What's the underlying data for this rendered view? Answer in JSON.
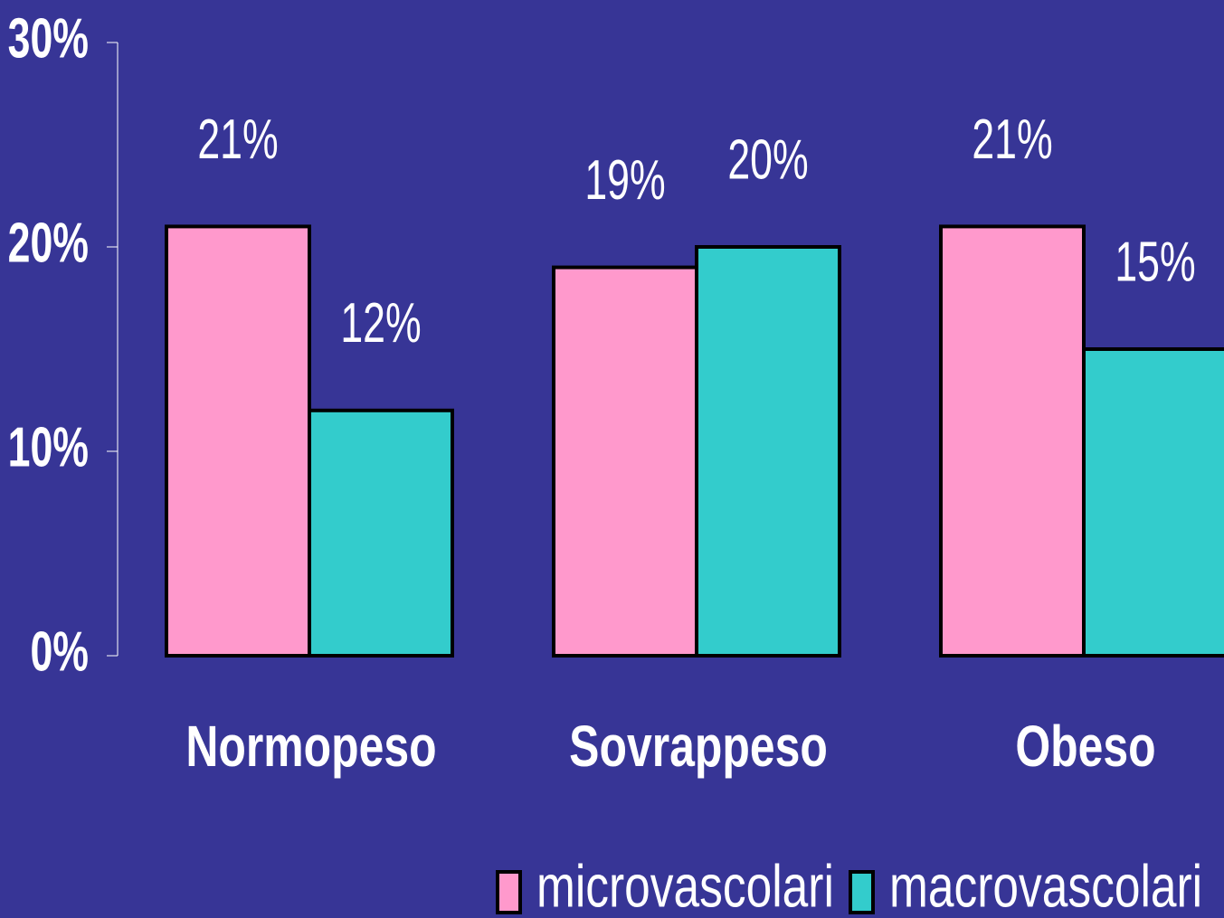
{
  "chart_data": {
    "type": "bar",
    "categories": [
      "Normopeso",
      "Sovrappeso",
      "Obeso"
    ],
    "series": [
      {
        "name": "microvascolari",
        "color": "#ff99cc",
        "values": [
          21,
          19,
          21
        ],
        "value_labels": [
          "21%",
          "19%",
          "21%"
        ]
      },
      {
        "name": "macrovascolari",
        "color": "#33cccc",
        "values": [
          12,
          20,
          15
        ],
        "value_labels": [
          "12%",
          "20%",
          "15%"
        ]
      }
    ],
    "ylim": [
      0,
      30
    ],
    "yticks": [
      {
        "value": 0,
        "label": "0%"
      },
      {
        "value": 10,
        "label": "10%"
      },
      {
        "value": 20,
        "label": "20%"
      },
      {
        "value": 30,
        "label": "30%"
      }
    ],
    "legend": "bottom-right"
  }
}
